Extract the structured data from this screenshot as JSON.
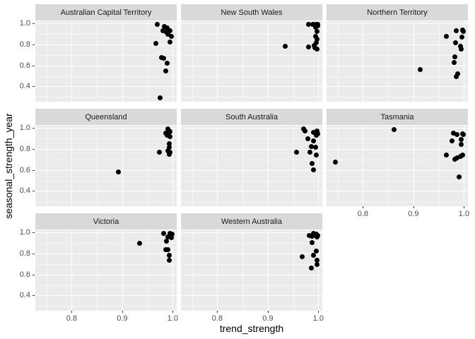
{
  "figure": {
    "background": "#FFFFFF",
    "panel_bg": "#EBEBEB",
    "strip_bg": "#D9D9D9",
    "grid_color": "#FFFFFF",
    "point_color": "#000000",
    "tick_label_color": "#4D4D4D",
    "strip_text_color": "#1A1A1A",
    "axis_title_color": "#000000",
    "tick_mark_color": "#333333"
  },
  "chart_data": {
    "type": "scatter",
    "title": "",
    "xlabel": "trend_strength",
    "ylabel": "seasonal_strength_year",
    "facet_layout": {
      "columns": 3,
      "strip_position": "top"
    },
    "x_ticks": [
      0.8,
      0.9,
      1.0
    ],
    "x_minor_ticks": [
      0.75,
      0.85,
      0.95
    ],
    "y_ticks": [
      1.0,
      0.8,
      0.6,
      0.4
    ],
    "y_minor_ticks": [
      0.9,
      0.7,
      0.5,
      0.3
    ],
    "x_domain": [
      0.728,
      1.008
    ],
    "y_domain": [
      0.2536,
      1.0223
    ],
    "grid": true,
    "legend": "none",
    "facets": [
      {
        "label": "Australian Capital Territory",
        "points": [
          [
            0.97,
            0.993
          ],
          [
            0.983,
            0.975
          ],
          [
            0.989,
            0.958
          ],
          [
            0.981,
            0.931
          ],
          [
            0.994,
            0.931
          ],
          [
            0.988,
            0.919
          ],
          [
            0.99,
            0.897
          ],
          [
            0.998,
            0.881
          ],
          [
            0.994,
            0.823
          ],
          [
            0.966,
            0.807
          ],
          [
            0.978,
            0.678
          ],
          [
            0.982,
            0.667
          ],
          [
            0.989,
            0.62
          ],
          [
            0.986,
            0.546
          ],
          [
            0.975,
            0.292
          ]
        ]
      },
      {
        "label": "New South Wales",
        "points": [
          [
            0.98,
            0.99
          ],
          [
            0.989,
            0.992
          ],
          [
            0.994,
            0.993
          ],
          [
            0.999,
            0.99
          ],
          [
            0.999,
            0.978
          ],
          [
            0.995,
            0.966
          ],
          [
            0.997,
            0.926
          ],
          [
            0.994,
            0.881
          ],
          [
            0.997,
            0.854
          ],
          [
            0.996,
            0.82
          ],
          [
            0.992,
            0.791
          ],
          [
            0.98,
            0.775
          ],
          [
            0.993,
            0.769
          ],
          [
            0.997,
            0.753
          ],
          [
            0.935,
            0.786
          ]
        ]
      },
      {
        "label": "Northern Territory",
        "points": [
          [
            0.985,
            0.933
          ],
          [
            0.997,
            0.939
          ],
          [
            0.999,
            0.926
          ],
          [
            0.965,
            0.877
          ],
          [
            0.996,
            0.872
          ],
          [
            0.983,
            0.82
          ],
          [
            0.993,
            0.78
          ],
          [
            0.995,
            0.757
          ],
          [
            0.982,
            0.681
          ],
          [
            0.981,
            0.629
          ],
          [
            0.913,
            0.562
          ],
          [
            0.987,
            0.521
          ],
          [
            0.985,
            0.494
          ]
        ]
      },
      {
        "label": "Queensland",
        "points": [
          [
            0.991,
            0.99
          ],
          [
            0.993,
            0.975
          ],
          [
            0.995,
            0.966
          ],
          [
            0.986,
            0.955
          ],
          [
            0.99,
            0.94
          ],
          [
            0.989,
            0.933
          ],
          [
            0.994,
            0.921
          ],
          [
            0.993,
            0.854
          ],
          [
            0.993,
            0.82
          ],
          [
            0.991,
            0.782
          ],
          [
            0.995,
            0.769
          ],
          [
            0.974,
            0.771
          ],
          [
            0.993,
            0.748
          ],
          [
            0.893,
            0.584
          ]
        ]
      },
      {
        "label": "South Australia",
        "points": [
          [
            0.971,
            0.993
          ],
          [
            0.974,
            0.971
          ],
          [
            0.991,
            0.96
          ],
          [
            0.997,
            0.971
          ],
          [
            0.999,
            0.944
          ],
          [
            0.996,
            0.93
          ],
          [
            0.979,
            0.899
          ],
          [
            0.99,
            0.877
          ],
          [
            0.986,
            0.821
          ],
          [
            0.995,
            0.814
          ],
          [
            0.983,
            0.773
          ],
          [
            0.957,
            0.769
          ],
          [
            0.996,
            0.746
          ],
          [
            0.988,
            0.661
          ],
          [
            0.991,
            0.6
          ]
        ]
      },
      {
        "label": "Tasmania",
        "points": [
          [
            0.861,
            0.985
          ],
          [
            0.979,
            0.949
          ],
          [
            0.986,
            0.937
          ],
          [
            0.997,
            0.944
          ],
          [
            0.999,
            0.937
          ],
          [
            0.976,
            0.881
          ],
          [
            0.995,
            0.892
          ],
          [
            0.995,
            0.841
          ],
          [
            0.965,
            0.742
          ],
          [
            0.982,
            0.701
          ],
          [
            0.986,
            0.713
          ],
          [
            0.993,
            0.728
          ],
          [
            0.997,
            0.742
          ],
          [
            0.746,
            0.674
          ],
          [
            0.991,
            0.533
          ]
        ]
      },
      {
        "label": "Victoria",
        "points": [
          [
            0.982,
            0.993
          ],
          [
            0.994,
            0.99
          ],
          [
            0.999,
            0.985
          ],
          [
            0.99,
            0.96
          ],
          [
            0.998,
            0.949
          ],
          [
            0.988,
            0.915
          ],
          [
            0.934,
            0.899
          ],
          [
            0.986,
            0.838
          ],
          [
            0.991,
            0.834
          ],
          [
            0.993,
            0.782
          ],
          [
            0.993,
            0.737
          ]
        ]
      },
      {
        "label": "Western Australia",
        "points": [
          [
            0.991,
            0.99
          ],
          [
            0.993,
            0.978
          ],
          [
            0.996,
            0.984
          ],
          [
            0.999,
            0.97
          ],
          [
            0.982,
            0.973
          ],
          [
            0.988,
            0.966
          ],
          [
            0.998,
            0.957
          ],
          [
            0.988,
            0.906
          ],
          [
            0.996,
            0.827
          ],
          [
            0.991,
            0.782
          ],
          [
            0.968,
            0.769
          ],
          [
            0.997,
            0.737
          ],
          [
            0.997,
            0.697
          ],
          [
            0.986,
            0.665
          ]
        ]
      }
    ]
  }
}
